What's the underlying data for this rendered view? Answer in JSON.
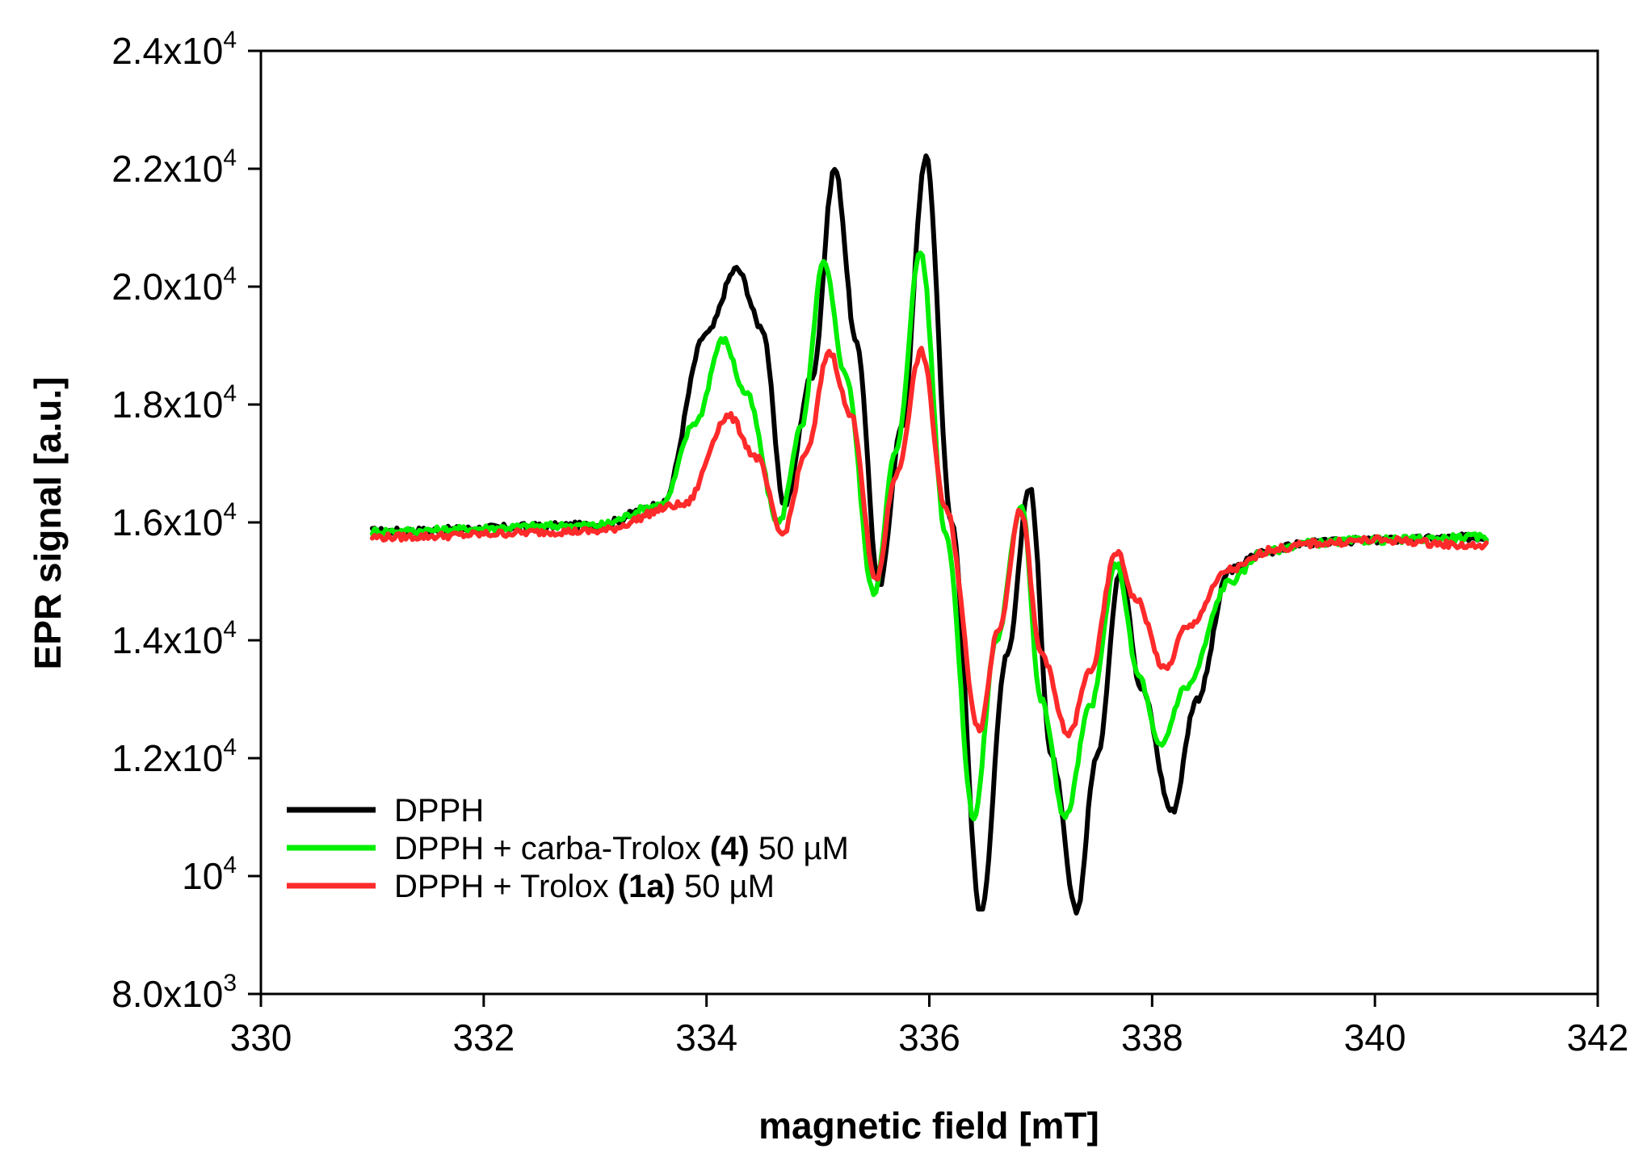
{
  "chart_data": {
    "type": "line",
    "title": "",
    "xlabel": "magnetic field [mT]",
    "ylabel": "EPR signal [a.u.]",
    "xlim": [
      330,
      342
    ],
    "ylim": [
      8000,
      24000
    ],
    "x_ticks": [
      330,
      332,
      334,
      336,
      338,
      340,
      342
    ],
    "x_tick_labels": [
      "330",
      "332",
      "334",
      "336",
      "338",
      "340",
      "342"
    ],
    "y_ticks": [
      {
        "value": 8000,
        "mantissa": "8.0x10",
        "exp": "3"
      },
      {
        "value": 10000,
        "mantissa": "10",
        "exp": "4"
      },
      {
        "value": 12000,
        "mantissa": "1.2x10",
        "exp": "4"
      },
      {
        "value": 14000,
        "mantissa": "1.4x10",
        "exp": "4"
      },
      {
        "value": 16000,
        "mantissa": "1.6x10",
        "exp": "4"
      },
      {
        "value": 18000,
        "mantissa": "1.8x10",
        "exp": "4"
      },
      {
        "value": 20000,
        "mantissa": "2.0x10",
        "exp": "4"
      },
      {
        "value": 22000,
        "mantissa": "2.2x10",
        "exp": "4"
      },
      {
        "value": 24000,
        "mantissa": "2.4x10",
        "exp": "4"
      }
    ],
    "grid": false,
    "legend_position": "bottom-left",
    "baseline": 15800,
    "series": [
      {
        "name": "DPPH",
        "legend_parts": [
          {
            "text": "DPPH",
            "bold": false
          }
        ],
        "color": "#000000",
        "points": [
          [
            331,
            15850
          ],
          [
            333,
            15950
          ],
          [
            333.6,
            16300
          ],
          [
            334.0,
            19200
          ],
          [
            334.27,
            20300
          ],
          [
            334.5,
            19300
          ],
          [
            334.7,
            16300
          ],
          [
            334.95,
            18500
          ],
          [
            335.15,
            22000
          ],
          [
            335.35,
            19000
          ],
          [
            335.55,
            14900
          ],
          [
            335.75,
            17600
          ],
          [
            335.97,
            22200
          ],
          [
            336.2,
            16000
          ],
          [
            336.46,
            9400
          ],
          [
            336.7,
            13800
          ],
          [
            336.9,
            16600
          ],
          [
            337.1,
            12000
          ],
          [
            337.32,
            9400
          ],
          [
            337.5,
            12000
          ],
          [
            337.72,
            15200
          ],
          [
            337.9,
            13200
          ],
          [
            338.18,
            11100
          ],
          [
            338.4,
            13000
          ],
          [
            338.7,
            15200
          ],
          [
            339.0,
            15500
          ],
          [
            339.4,
            15650
          ],
          [
            340,
            15700
          ],
          [
            341,
            15750
          ]
        ]
      },
      {
        "name": "DPPH + carba-Trolox (4) 50 µM",
        "legend_parts": [
          {
            "text": "DPPH + carba-Trolox ",
            "bold": false
          },
          {
            "text": "(4)",
            "bold": true
          },
          {
            "text": " 50 µM",
            "bold": false
          }
        ],
        "color": "#00ee00",
        "points": [
          [
            331,
            15850
          ],
          [
            333,
            15950
          ],
          [
            333.6,
            16300
          ],
          [
            333.9,
            17700
          ],
          [
            334.15,
            19100
          ],
          [
            334.35,
            18200
          ],
          [
            334.65,
            16000
          ],
          [
            334.85,
            17600
          ],
          [
            335.05,
            20400
          ],
          [
            335.25,
            18500
          ],
          [
            335.5,
            14800
          ],
          [
            335.7,
            17200
          ],
          [
            335.92,
            20600
          ],
          [
            336.15,
            15800
          ],
          [
            336.4,
            11000
          ],
          [
            336.6,
            14000
          ],
          [
            336.83,
            16300
          ],
          [
            337.0,
            13000
          ],
          [
            337.22,
            11000
          ],
          [
            337.45,
            12900
          ],
          [
            337.68,
            15300
          ],
          [
            337.88,
            13400
          ],
          [
            338.07,
            12200
          ],
          [
            338.3,
            13200
          ],
          [
            338.7,
            15000
          ],
          [
            339.0,
            15500
          ],
          [
            339.4,
            15650
          ],
          [
            340,
            15700
          ],
          [
            341,
            15750
          ]
        ]
      },
      {
        "name": "DPPH + Trolox (1a) 50 µM",
        "legend_parts": [
          {
            "text": "DPPH + Trolox ",
            "bold": false
          },
          {
            "text": "(1a)",
            "bold": true
          },
          {
            "text": " 50 µM",
            "bold": false
          }
        ],
        "color": "#ff2a2a",
        "points": [
          [
            331,
            15750
          ],
          [
            333,
            15850
          ],
          [
            333.8,
            16300
          ],
          [
            334.2,
            17800
          ],
          [
            334.45,
            17100
          ],
          [
            334.68,
            15800
          ],
          [
            334.9,
            17200
          ],
          [
            335.1,
            18900
          ],
          [
            335.3,
            17800
          ],
          [
            335.52,
            15000
          ],
          [
            335.7,
            16800
          ],
          [
            335.93,
            18900
          ],
          [
            336.15,
            16200
          ],
          [
            336.45,
            12500
          ],
          [
            336.62,
            14200
          ],
          [
            336.82,
            16200
          ],
          [
            337.0,
            13800
          ],
          [
            337.25,
            12400
          ],
          [
            337.45,
            13500
          ],
          [
            337.68,
            15500
          ],
          [
            337.85,
            14700
          ],
          [
            338.12,
            13500
          ],
          [
            338.3,
            14200
          ],
          [
            338.7,
            15200
          ],
          [
            339.1,
            15550
          ],
          [
            339.5,
            15650
          ],
          [
            340,
            15700
          ],
          [
            341,
            15600
          ]
        ]
      }
    ]
  }
}
